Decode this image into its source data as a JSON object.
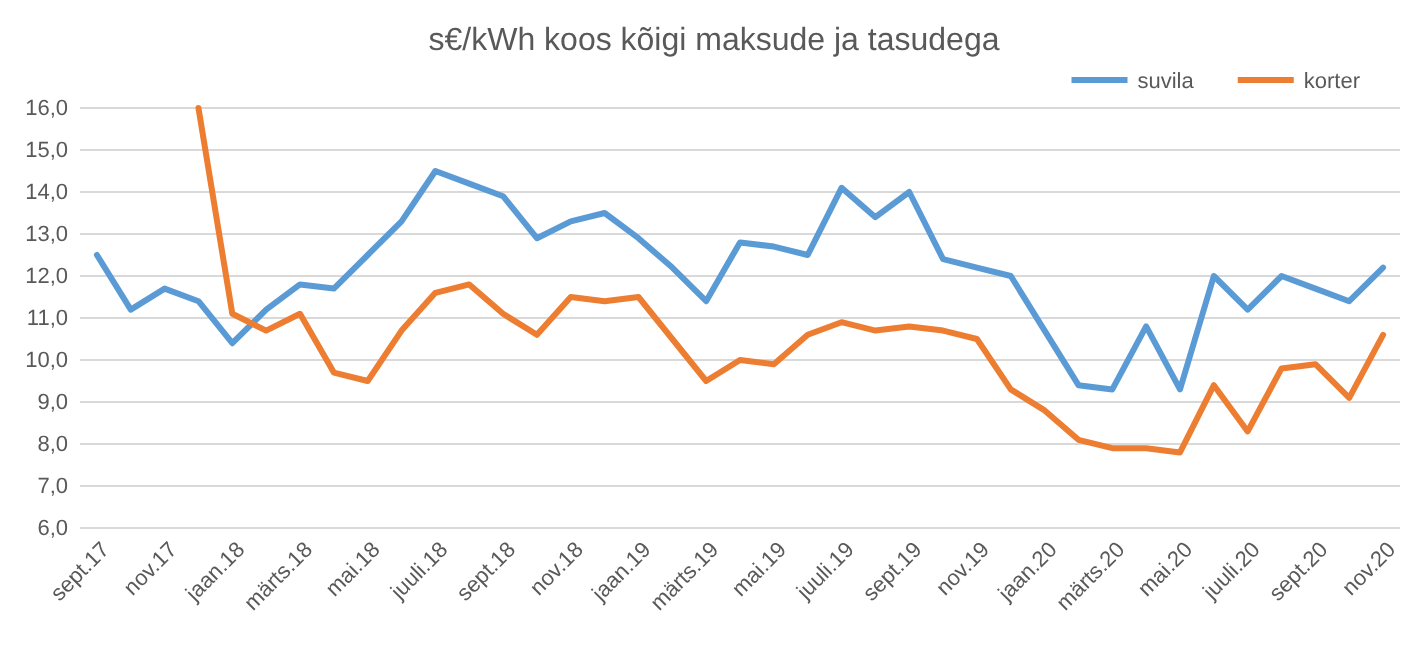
{
  "chart_data": {
    "type": "line",
    "title": "s€/kWh koos kõigi maksude ja tasudega",
    "categories": [
      "sept.17",
      null,
      "nov.17",
      null,
      "jaan.18",
      null,
      "märts.18",
      null,
      "mai.18",
      null,
      "juuli.18",
      null,
      "sept.18",
      null,
      "nov.18",
      null,
      "jaan.19",
      null,
      "märts.19",
      null,
      "mai.19",
      null,
      "juuli.19",
      null,
      "sept.19",
      null,
      "nov.19",
      null,
      "jaan.20",
      null,
      "märts.20",
      null,
      "mai.20",
      null,
      "juuli.20",
      null,
      "sept.20",
      null,
      "nov.20"
    ],
    "series": [
      {
        "name": "suvila",
        "color": "#5b9bd5",
        "values": [
          12.5,
          11.2,
          11.7,
          11.4,
          10.4,
          11.2,
          11.8,
          11.7,
          12.5,
          13.3,
          14.5,
          14.2,
          13.9,
          12.9,
          13.3,
          13.5,
          12.9,
          12.2,
          11.4,
          12.8,
          12.7,
          12.5,
          14.1,
          13.4,
          14.0,
          12.4,
          12.2,
          12.0,
          10.7,
          9.4,
          9.3,
          10.8,
          9.3,
          12.0,
          11.2,
          12.0,
          11.7,
          11.4,
          12.2
        ]
      },
      {
        "name": "korter",
        "color": "#ed7d31",
        "values": [
          null,
          null,
          null,
          16.0,
          11.1,
          10.7,
          11.1,
          9.7,
          9.5,
          10.7,
          11.6,
          11.8,
          11.1,
          10.6,
          11.5,
          11.4,
          11.5,
          10.5,
          9.5,
          10.0,
          9.9,
          10.6,
          10.9,
          10.7,
          10.8,
          10.7,
          10.5,
          9.3,
          8.8,
          8.1,
          7.9,
          7.9,
          7.8,
          9.4,
          8.3,
          9.8,
          9.9,
          9.1,
          10.6
        ]
      }
    ],
    "ylim": [
      6,
      16
    ],
    "yticks": [
      {
        "value": 6,
        "label": "6,0"
      },
      {
        "value": 7,
        "label": "7,0"
      },
      {
        "value": 8,
        "label": "8,0"
      },
      {
        "value": 9,
        "label": "9,0"
      },
      {
        "value": 10,
        "label": "10,0"
      },
      {
        "value": 11,
        "label": "11,0"
      },
      {
        "value": 12,
        "label": "12,0"
      },
      {
        "value": 13,
        "label": "13,0"
      },
      {
        "value": 14,
        "label": "14,0"
      },
      {
        "value": 15,
        "label": "15,0"
      },
      {
        "value": 16,
        "label": "16,0"
      }
    ],
    "grid": "y",
    "legend": "top right"
  }
}
